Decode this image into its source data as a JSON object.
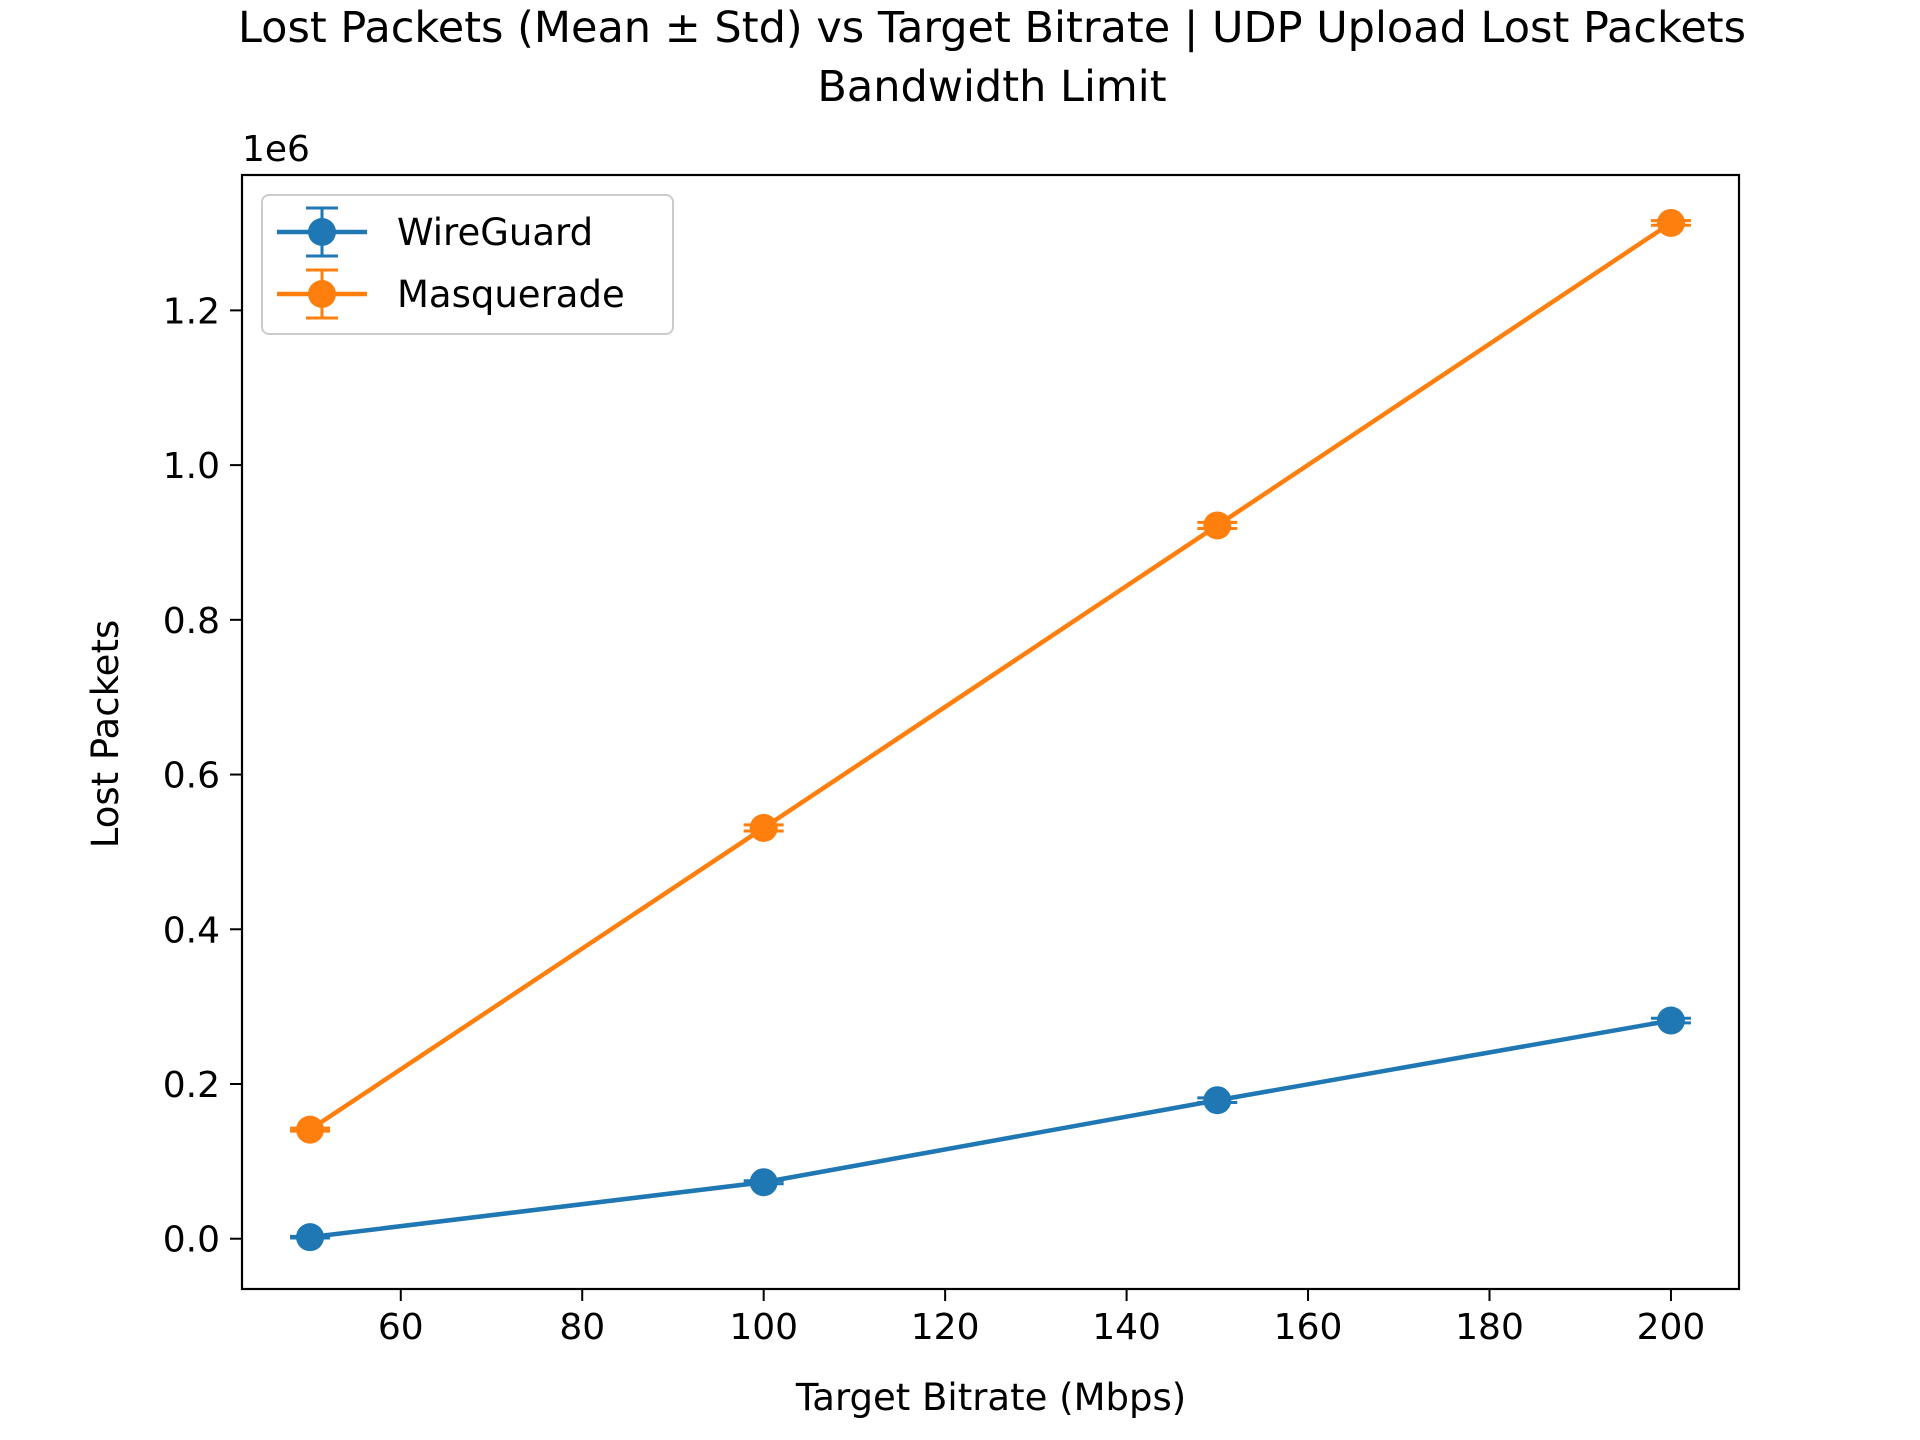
{
  "chart_data": {
    "type": "line",
    "title": "Lost Packets (Mean ± Std) vs Target Bitrate | UDP Upload Lost Packets Bandwidth Limit",
    "title_lines": [
      "Lost Packets (Mean ± Std) vs Target Bitrate | UDP Upload Lost Packets",
      "Bandwidth Limit"
    ],
    "xlabel": "Target Bitrate (Mbps)",
    "ylabel": "Lost Packets",
    "y_offset_label": "1e6",
    "x_ticks": [
      60,
      80,
      100,
      120,
      140,
      160,
      180,
      200
    ],
    "x_tick_labels": [
      "60",
      "80",
      "100",
      "120",
      "140",
      "160",
      "180",
      "200"
    ],
    "y_ticks": [
      0.0,
      0.2,
      0.4,
      0.6,
      0.8,
      1.0,
      1.2
    ],
    "y_tick_labels": [
      "0.0",
      "0.2",
      "0.4",
      "0.6",
      "0.8",
      "1.0",
      "1.2"
    ],
    "xlim": [
      42.5,
      207.5
    ],
    "ylim": [
      -0.065,
      1.375
    ],
    "y_scale_multiplier": 1000000,
    "grid": false,
    "legend_position": "top-left",
    "x": [
      50,
      100,
      150,
      200
    ],
    "series": [
      {
        "name": "WireGuard",
        "color": "#1f77b4",
        "values": [
          0.002,
          0.073,
          0.179,
          0.282
        ],
        "std": [
          0.001,
          0.002,
          0.003,
          0.003
        ]
      },
      {
        "name": "Masquerade",
        "color": "#ff7f0e",
        "values": [
          0.141,
          0.531,
          0.922,
          1.313
        ],
        "std": [
          0.002,
          0.004,
          0.004,
          0.003
        ]
      }
    ]
  }
}
